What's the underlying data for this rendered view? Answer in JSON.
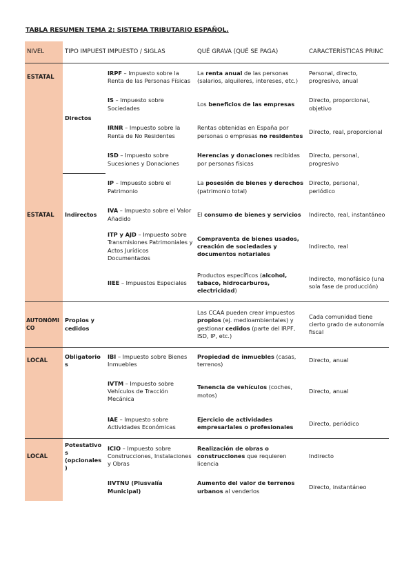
{
  "title": "TABLA RESUMEN TEMA 2: SISTEMA TRIBUTARIO ESPAÑOL.",
  "headers": {
    "nivel": "NIVEL",
    "tipo": "TIPO IMPUEST",
    "impuesto": "IMPUESTO / SIGLAS",
    "grava": "QUÉ GRAVA (QUÉ SE PAGA)",
    "caract": "CARACTERÍSTICAS PRINC"
  },
  "colors": {
    "accent": "#f6c8ad",
    "rule": "#333333"
  },
  "rows": [
    {
      "nivel": "ESTATAL",
      "tipo": "Directos",
      "sigla": "IRPF",
      "imp": " – Impuesto sobre la Renta de las Personas Físicas",
      "g1": "La ",
      "g2": "renta anual",
      "g3": " de las personas (salarios, alquileres, intereses, etc.)",
      "car": "Personal, directo, progresivo, anual"
    },
    {
      "sigla": "IS",
      "imp": " – Impuesto sobre Sociedades",
      "g1": "Los ",
      "g2": "beneficios de las empresas",
      "g3": "",
      "car": "Directo, proporcional, objetivo"
    },
    {
      "sigla": "IRNR",
      "imp": " – Impuesto sobre la Renta de No Residentes",
      "g1": "Rentas obtenidas en España por personas o empresas ",
      "g2": "no residentes",
      "g3": "",
      "car": "Directo, real, proporcional"
    },
    {
      "sigla": "ISD",
      "imp": " – Impuesto sobre Sucesiones y Donaciones",
      "g1": "",
      "g2": "Herencias y donaciones",
      "g3": " recibidas por personas físicas",
      "car": "Directo, personal, progresivo"
    },
    {
      "sigla": "IP",
      "imp": " – Impuesto sobre el Patrimonio",
      "g1": "La ",
      "g2": "posesión de bienes y derechos",
      "g3": " (patrimonio total)",
      "car": "Directo, personal, periódico"
    },
    {
      "nivel": "ESTATAL",
      "tipo": "Indirectos",
      "sigla": "IVA",
      "imp": " – Impuesto sobre el Valor Añadido",
      "g1": "El ",
      "g2": "consumo de bienes y servicios",
      "g3": "",
      "car": "Indirecto, real, instantáneo"
    },
    {
      "sigla": "ITP y AJD",
      "imp": " – Impuesto sobre Transmisiones Patrimoniales y Actos Jurídicos Documentados",
      "g1": "",
      "g2": "Compraventa de bienes usados, creación de sociedades y documentos notariales",
      "g3": "",
      "car": "Indirecto, real"
    },
    {
      "sigla": "IIEE",
      "imp": " – Impuestos Especiales",
      "g1": "Productos específicos (",
      "g2": "alcohol, tabaco, hidrocarburos, electricidad",
      "g3": ")",
      "car": "Indirecto, monofásico (una sola fase de producción)"
    },
    {
      "nivel": "AUTONÓMICO",
      "tipo": "Propios y cedidos",
      "sigla": "",
      "imp": "",
      "g1": "Las CCAA pueden crear impuestos ",
      "g2": "propios",
      "g3": " (ej. medioambientales) y gestionar ",
      "g4": "cedidos",
      "g5": " (parte del IRPF, ISD, IP, etc.)",
      "car": "Cada comunidad tiene cierto grado de autonomía fiscal"
    },
    {
      "nivel": "LOCAL",
      "tipo": "Obligatorios",
      "sigla": "IBI",
      "imp": " – Impuesto sobre Bienes Inmuebles",
      "g1": "",
      "g2": "Propiedad de inmuebles",
      "g3": " (casas, terrenos)",
      "car": "Directo, anual"
    },
    {
      "sigla": "IVTM",
      "imp": " – Impuesto sobre Vehículos de Tracción Mecánica",
      "g1": "",
      "g2": "Tenencia de vehículos",
      "g3": " (coches, motos)",
      "car": "Directo, anual"
    },
    {
      "sigla": "IAE",
      "imp": " – Impuesto sobre Actividades Económicas",
      "g1": "",
      "g2": "Ejercicio de actividades empresariales o profesionales",
      "g3": "",
      "car": "Directo, periódico"
    },
    {
      "nivel": "LOCAL",
      "tipo": "Potestativos (opcionales)",
      "sigla": "ICIO",
      "imp": " – Impuesto sobre Construcciones, Instalaciones y Obras",
      "g1": "",
      "g2": "Realización de obras o construcciones",
      "g3": " que requieren licencia",
      "car": "Indirecto"
    },
    {
      "sigla": "IIVTNU (Plusvalía Municipal)",
      "imp": "",
      "g1": "",
      "g2": "Aumento del valor de terrenos urbanos",
      "g3": " al venderlos",
      "car": "Directo, instantáneo"
    }
  ]
}
